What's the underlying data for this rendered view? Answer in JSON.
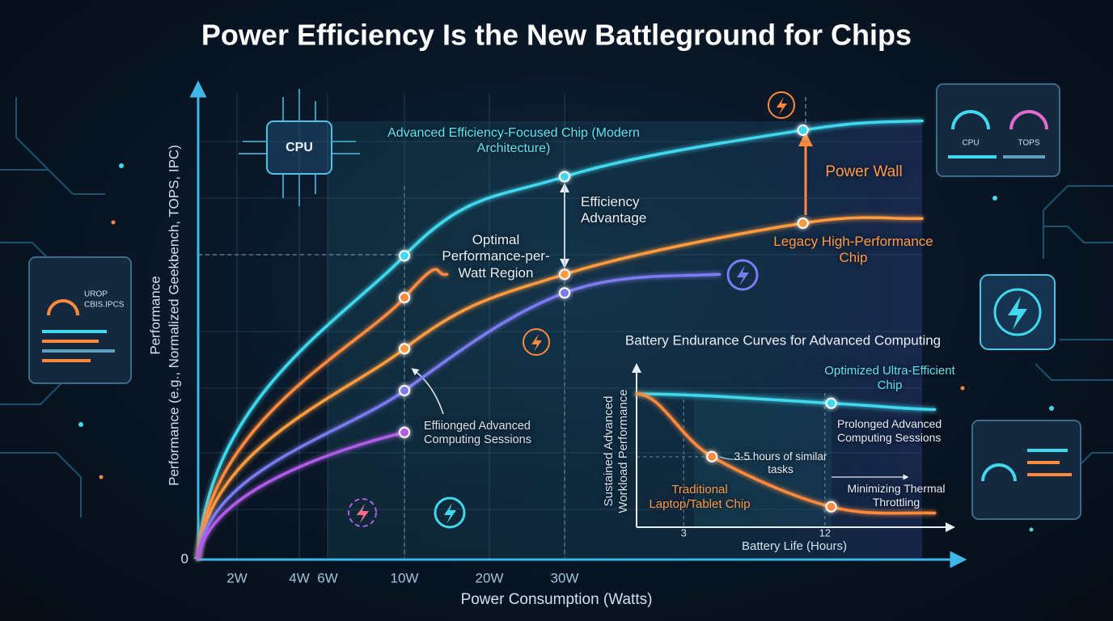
{
  "title": "Power Efficiency Is the New Battleground for Chips",
  "chart_data": [
    {
      "type": "line",
      "xlabel": "Power Consumption (Watts)",
      "ylabel": "Performance",
      "ylabel_detail": "Performance (e.g., Normalized Geekbench, TOPS, IPC)",
      "xlim": [
        0,
        60
      ],
      "xticks": [
        {
          "value": 2,
          "label": "2W"
        },
        {
          "value": 4,
          "label": "4W"
        },
        {
          "value": 6,
          "label": "6W"
        },
        {
          "value": 10,
          "label": "10W"
        },
        {
          "value": 20,
          "label": "20W"
        },
        {
          "value": 30,
          "label": "30W"
        }
      ],
      "ylim": [
        0,
        100
      ],
      "yticks": [
        0
      ],
      "series": [
        {
          "name": "Advanced Efficiency-Focused Chip (Modern Architecture)",
          "color": "#3fd8ee",
          "x": [
            0,
            10,
            30,
            50,
            60
          ],
          "values": [
            0,
            65,
            82,
            92,
            94
          ]
        },
        {
          "color": "#ff8a3d",
          "x": [
            0,
            10,
            15
          ],
          "values": [
            0,
            56,
            61
          ]
        },
        {
          "name": "Legacy High-Performance Chip",
          "color": "#ff9a3c",
          "x": [
            0,
            10,
            30,
            50,
            60
          ],
          "values": [
            0,
            45,
            61,
            72,
            73
          ]
        },
        {
          "color": "#7b7cf0",
          "x": [
            0,
            10,
            30,
            43
          ],
          "values": [
            0,
            36,
            57,
            61
          ]
        },
        {
          "color": "#b05ce8",
          "x": [
            0,
            10
          ],
          "values": [
            0,
            27
          ]
        }
      ],
      "annotations": [
        "Optimal Performance-per-Watt Region",
        "Efficiency Advantage",
        "Power Wall",
        "Effiionged Advanced Computing Sessions"
      ]
    },
    {
      "type": "line",
      "title": "Battery Endurance Curves for Advanced Computing",
      "xlabel": "Battery Life (Hours)",
      "ylabel": "Sustained Advanced Workload Performance",
      "xlim": [
        0,
        20
      ],
      "xticks": [
        3,
        12
      ],
      "ylim": [
        0,
        100
      ],
      "series": [
        {
          "name": "Optimized Ultra-Efficient Chip",
          "color": "#3fd8ee",
          "x": [
            0,
            12.4,
            19
          ],
          "values": [
            85,
            79,
            75
          ]
        },
        {
          "name": "Traditional Laptop/Tablet Chip",
          "color": "#ff8a3d",
          "x": [
            0,
            4.8,
            12.4,
            19
          ],
          "values": [
            85,
            45,
            13,
            9
          ]
        }
      ],
      "annotations": [
        "Prolonged Advanced Computing Sessions",
        "3-5 hours of similar tasks",
        "Minimizing Thermal Throttling"
      ]
    }
  ],
  "decor": {
    "chip_label": "CPU",
    "gauge_labels": [
      "CPU",
      "TOPS"
    ],
    "panel_lines": [
      "UROP",
      "CBIS.IPCS"
    ]
  }
}
